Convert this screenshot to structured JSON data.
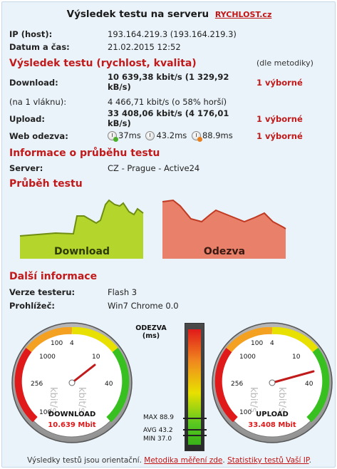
{
  "header": {
    "title": "Výsledek testu na serveru",
    "site_link": "RYCHLOST.cz"
  },
  "info": {
    "ip_label": "IP (host):",
    "ip_value": "193.164.219.3 (193.164.219.3)",
    "date_label": "Datum a čas:",
    "date_value": "21.02.2015 12:52"
  },
  "result": {
    "section_title": "Výsledek testu (rychlost, kvalita)",
    "method_note": "(dle metodiky)",
    "download_label": "Download:",
    "download_value_1": "10 639,38 kbit/s (1 329,92",
    "download_value_2": "kB/s)",
    "download_grade": "1 výborné",
    "single_label": "(na 1 vláknu):",
    "single_value": "4 466,71 kbit/s (o 58% horší)",
    "upload_label": "Upload:",
    "upload_value_1": "33 408,06 kbit/s (4 176,01",
    "upload_value_2": "kB/s)",
    "upload_grade": "1 výborné",
    "web_label": "Web odezva:",
    "web_values": [
      "37ms",
      "43.2ms",
      "88.9ms"
    ],
    "web_grade": "1 výborné"
  },
  "progress_info": {
    "section_title": "Informace o průběhu testu",
    "server_label": "Server:",
    "server_value": "CZ - Prague - Active24"
  },
  "charts": {
    "section_title": "Průběh testu",
    "download_label": "Download",
    "latency_label": "Odezva",
    "download_color": "#b4d62c",
    "latency_color": "#e8806a"
  },
  "more": {
    "section_title": "Další informace",
    "tester_label": "Verze testeru:",
    "tester_value": "Flash 3",
    "browser_label": "Prohlížeč:",
    "browser_value": "Win7 Chrome 0.0"
  },
  "gauges": {
    "download": {
      "label": "DOWNLOAD",
      "value": "10.639 Mbit",
      "ticks": [
        "100",
        "4",
        "10",
        "1000",
        "256",
        "40",
        "100"
      ],
      "unit": "kbit/s",
      "speed_mbit": 10.639
    },
    "upload": {
      "label": "UPLOAD",
      "value": "33.408 Mbit",
      "ticks": [
        "100",
        "4",
        "10",
        "1000",
        "256",
        "40",
        "100"
      ],
      "unit": "kbit/s",
      "speed_mbit": 33.408
    },
    "odezva": {
      "title": "ODEZVA (ms)",
      "max_label": "MAX 88.9",
      "avg_label": "AVG 43.2",
      "min_label": "MIN 37.0"
    }
  },
  "footer": {
    "text": "Výsledky testů jsou orientační.",
    "link1": "Metodika měření zde",
    "link2": "Statistiky testů Vaší IP"
  }
}
